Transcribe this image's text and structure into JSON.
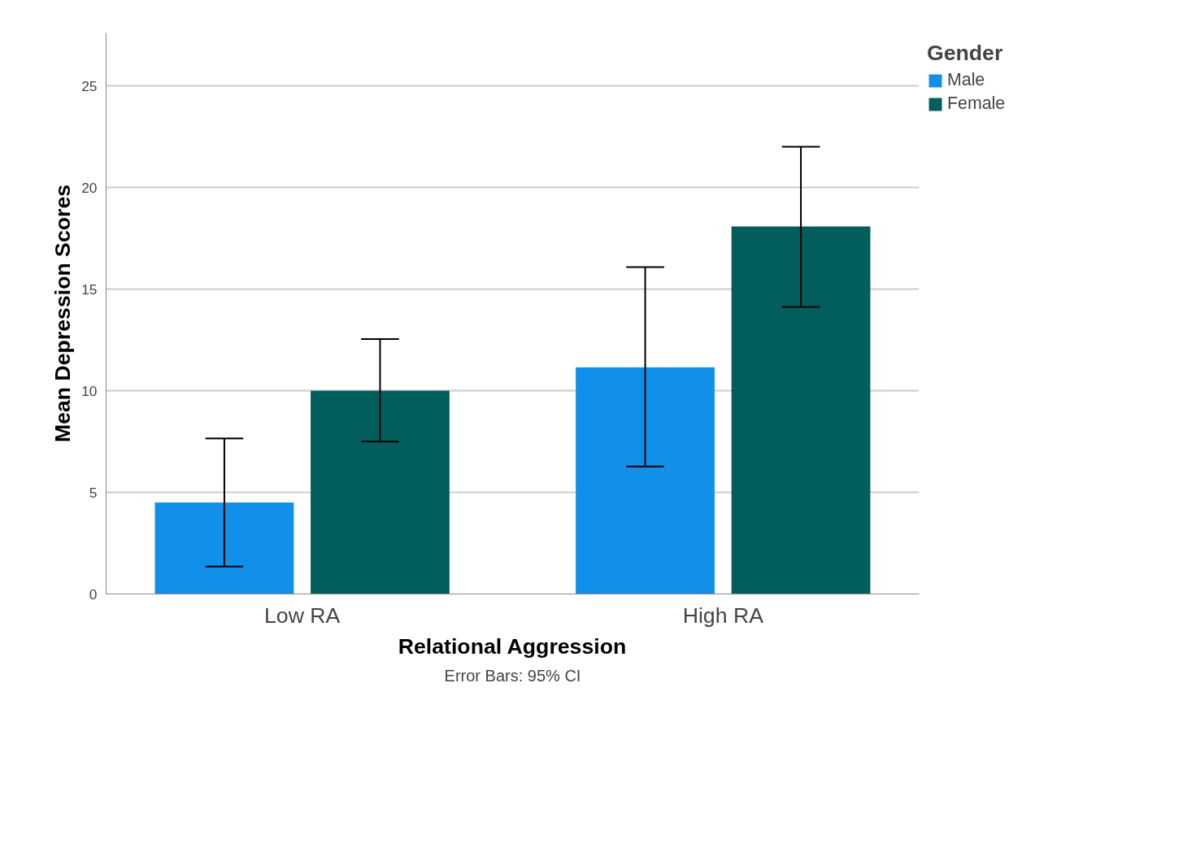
{
  "chart_data": {
    "type": "bar",
    "xlabel": "Relational Aggression",
    "ylabel": "Mean Depression Scores",
    "legend_title": "Gender",
    "categories": [
      "Low RA",
      "High RA"
    ],
    "series": [
      {
        "name": "Male",
        "color": "#1090e8",
        "values": [
          4.5,
          11.15
        ],
        "errors": [
          [
            1.35,
            7.65
          ],
          [
            6.27,
            16.08
          ]
        ]
      },
      {
        "name": "Female",
        "color": "#025e5c",
        "values": [
          10.0,
          18.08
        ],
        "errors": [
          [
            7.5,
            12.54
          ],
          [
            14.12,
            22.0
          ]
        ]
      }
    ],
    "ylim": [
      0,
      27.6
    ],
    "yticks": [
      0,
      5,
      10,
      15,
      20,
      25
    ],
    "grid": "y",
    "legend": "top right",
    "annotations": [
      "Error Bars: 95% CI"
    ]
  }
}
